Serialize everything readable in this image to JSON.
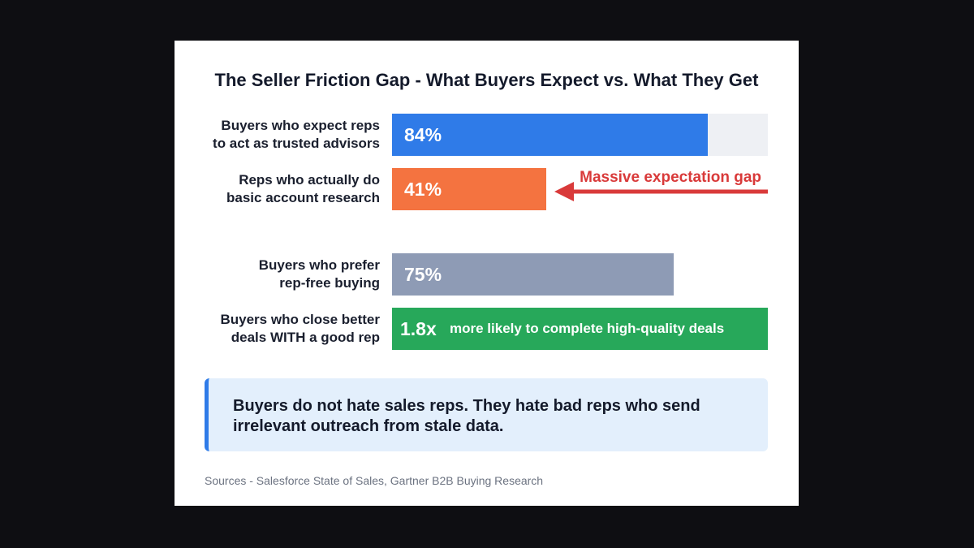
{
  "chart_data": {
    "type": "bar",
    "orientation": "horizontal",
    "title": "The Seller Friction Gap - What Buyers Expect vs. What They Get",
    "categories": [
      "Buyers who expect reps\nto act as trusted advisors",
      "Reps who actually do\nbasic account research",
      "Buyers who prefer\nrep-free buying"
    ],
    "values": [
      84,
      41,
      75
    ],
    "value_labels": [
      "84%",
      "41%",
      "75%"
    ],
    "colors": [
      "#2f7be8",
      "#f47340",
      "#8e9bb5"
    ],
    "xlim": [
      0,
      100
    ],
    "annotation": "Massive expectation gap",
    "highlight": {
      "label": "Buyers who close better\ndeals WITH a good rep",
      "value_label": "1.8x",
      "text": "more likely to complete high-quality deals",
      "color": "#27a85a"
    },
    "callout": "Buyers do not hate sales reps. They hate bad reps who send irrelevant outreach from stale data.",
    "source": "Sources - Salesforce State of Sales, Gartner B2B Buying Research"
  }
}
